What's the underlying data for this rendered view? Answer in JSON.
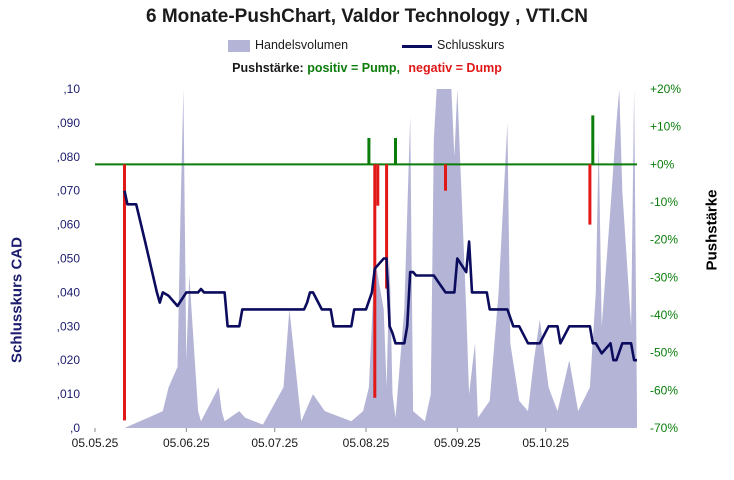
{
  "chart_data": {
    "type": "line",
    "title": "6 Monate-PushChart,  Valdor Technology , VTI.CN",
    "legend": {
      "position": "top",
      "volume_label": "Handelsvolumen",
      "close_label": "Schlusskurs"
    },
    "push_legend": {
      "label": "Pushstärke:",
      "positive": "positiv = Pump,",
      "negative": "negativ = Dump"
    },
    "ylabel_left": "Schlusskurs CAD",
    "ylabel_right": "Pushstärke",
    "x_start": "05.05.25",
    "x_end": "05.11.25",
    "x_ticks": [
      "05.05.25",
      "05.06.25",
      "05.07.25",
      "05.08.25",
      "05.09.25",
      "05.10.25"
    ],
    "y_left_ticks": [
      ",0",
      ",010",
      ",020",
      ",030",
      ",040",
      ",050",
      ",060",
      ",070",
      ",080",
      ",090",
      ",10"
    ],
    "y_left_range": [
      0,
      0.1
    ],
    "y_right_ticks": [
      "-70%",
      "-60%",
      "-50%",
      "-40%",
      "-30%",
      "-20%",
      "-10%",
      "+0%",
      "+10%",
      "+20%"
    ],
    "y_right_range": [
      -70,
      20
    ],
    "grid": false,
    "colors": {
      "volume": "#b4b4d6",
      "close": "#0c0c5e",
      "positive": "#0a7d0a",
      "negative": "#e01818",
      "zero_line": "#0a7d0a",
      "left_axis": "#1c1c6e",
      "right_axis": "#0a7d0a"
    },
    "series": [
      {
        "name": "Schlusskurs",
        "points": [
          [
            "2025-05-15",
            0.07
          ],
          [
            "2025-05-16",
            0.066
          ],
          [
            "2025-05-19",
            0.066
          ],
          [
            "2025-05-22",
            0.055
          ],
          [
            "2025-05-26",
            0.04
          ],
          [
            "2025-05-27",
            0.037
          ],
          [
            "2025-05-28",
            0.04
          ],
          [
            "2025-05-30",
            0.039
          ],
          [
            "2025-06-02",
            0.036
          ],
          [
            "2025-06-05",
            0.04
          ],
          [
            "2025-06-09",
            0.04
          ],
          [
            "2025-06-10",
            0.041
          ],
          [
            "2025-06-11",
            0.04
          ],
          [
            "2025-06-18",
            0.04
          ],
          [
            "2025-06-19",
            0.03
          ],
          [
            "2025-06-23",
            0.03
          ],
          [
            "2025-06-24",
            0.035
          ],
          [
            "2025-07-15",
            0.035
          ],
          [
            "2025-07-16",
            0.037
          ],
          [
            "2025-07-17",
            0.04
          ],
          [
            "2025-07-18",
            0.04
          ],
          [
            "2025-07-21",
            0.035
          ],
          [
            "2025-07-24",
            0.035
          ],
          [
            "2025-07-25",
            0.03
          ],
          [
            "2025-07-31",
            0.03
          ],
          [
            "2025-08-01",
            0.035
          ],
          [
            "2025-08-05",
            0.035
          ],
          [
            "2025-08-07",
            0.04
          ],
          [
            "2025-08-08",
            0.047
          ],
          [
            "2025-08-11",
            0.05
          ],
          [
            "2025-08-12",
            0.05
          ],
          [
            "2025-08-13",
            0.03
          ],
          [
            "2025-08-14",
            0.028
          ],
          [
            "2025-08-15",
            0.025
          ],
          [
            "2025-08-18",
            0.025
          ],
          [
            "2025-08-19",
            0.03
          ],
          [
            "2025-08-20",
            0.046
          ],
          [
            "2025-08-21",
            0.046
          ],
          [
            "2025-08-22",
            0.045
          ],
          [
            "2025-08-25",
            0.045
          ],
          [
            "2025-08-28",
            0.045
          ],
          [
            "2025-09-01",
            0.04
          ],
          [
            "2025-09-04",
            0.04
          ],
          [
            "2025-09-05",
            0.05
          ],
          [
            "2025-09-08",
            0.046
          ],
          [
            "2025-09-09",
            0.055
          ],
          [
            "2025-09-10",
            0.04
          ],
          [
            "2025-09-15",
            0.04
          ],
          [
            "2025-09-16",
            0.035
          ],
          [
            "2025-09-22",
            0.035
          ],
          [
            "2025-09-24",
            0.03
          ],
          [
            "2025-09-26",
            0.03
          ],
          [
            "2025-09-29",
            0.025
          ],
          [
            "2025-10-03",
            0.025
          ],
          [
            "2025-10-06",
            0.03
          ],
          [
            "2025-10-09",
            0.03
          ],
          [
            "2025-10-10",
            0.025
          ],
          [
            "2025-10-13",
            0.03
          ],
          [
            "2025-10-20",
            0.03
          ],
          [
            "2025-10-21",
            0.025
          ],
          [
            "2025-10-22",
            0.025
          ],
          [
            "2025-10-24",
            0.022
          ],
          [
            "2025-10-27",
            0.025
          ],
          [
            "2025-10-28",
            0.02
          ],
          [
            "2025-10-29",
            0.02
          ],
          [
            "2025-10-31",
            0.025
          ],
          [
            "2025-11-03",
            0.025
          ],
          [
            "2025-11-04",
            0.02
          ],
          [
            "2025-11-05",
            0.02
          ]
        ]
      },
      {
        "name": "Handelsvolumen",
        "relative": true,
        "points": [
          [
            "2025-05-15",
            0
          ],
          [
            "2025-05-23",
            0.03
          ],
          [
            "2025-05-28",
            0.05
          ],
          [
            "2025-05-30",
            0.12
          ],
          [
            "2025-06-02",
            0.18
          ],
          [
            "2025-06-03",
            0.62
          ],
          [
            "2025-06-04",
            1.0
          ],
          [
            "2025-06-05",
            0.2
          ],
          [
            "2025-06-06",
            0.45
          ],
          [
            "2025-06-09",
            0.05
          ],
          [
            "2025-06-10",
            0.02
          ],
          [
            "2025-06-16",
            0.12
          ],
          [
            "2025-06-17",
            0.05
          ],
          [
            "2025-06-18",
            0.02
          ],
          [
            "2025-06-23",
            0.05
          ],
          [
            "2025-06-25",
            0.03
          ],
          [
            "2025-07-01",
            0.01
          ],
          [
            "2025-07-08",
            0.12
          ],
          [
            "2025-07-10",
            0.35
          ],
          [
            "2025-07-14",
            0.02
          ],
          [
            "2025-07-18",
            0.1
          ],
          [
            "2025-07-22",
            0.05
          ],
          [
            "2025-07-31",
            0.02
          ],
          [
            "2025-08-04",
            0.05
          ],
          [
            "2025-08-06",
            0.12
          ],
          [
            "2025-08-08",
            0.5
          ],
          [
            "2025-08-11",
            0.35
          ],
          [
            "2025-08-12",
            0.12
          ],
          [
            "2025-08-13",
            0.5
          ],
          [
            "2025-08-14",
            0.1
          ],
          [
            "2025-08-15",
            0.03
          ],
          [
            "2025-08-18",
            0.35
          ],
          [
            "2025-08-20",
            0.92
          ],
          [
            "2025-08-21",
            0.05
          ],
          [
            "2025-08-25",
            0.02
          ],
          [
            "2025-08-27",
            0.1
          ],
          [
            "2025-08-28",
            0.85
          ],
          [
            "2025-08-29",
            1.0
          ],
          [
            "2025-09-03",
            1.0
          ],
          [
            "2025-09-04",
            0.8
          ],
          [
            "2025-09-05",
            1.0
          ],
          [
            "2025-09-08",
            0.35
          ],
          [
            "2025-09-09",
            0.1
          ],
          [
            "2025-09-11",
            0.25
          ],
          [
            "2025-09-12",
            0.03
          ],
          [
            "2025-09-16",
            0.08
          ],
          [
            "2025-09-19",
            0.4
          ],
          [
            "2025-09-22",
            0.9
          ],
          [
            "2025-09-23",
            0.25
          ],
          [
            "2025-09-26",
            0.08
          ],
          [
            "2025-09-29",
            0.05
          ],
          [
            "2025-10-01",
            0.2
          ],
          [
            "2025-10-03",
            0.32
          ],
          [
            "2025-10-06",
            0.12
          ],
          [
            "2025-10-09",
            0.05
          ],
          [
            "2025-10-13",
            0.2
          ],
          [
            "2025-10-16",
            0.05
          ],
          [
            "2025-10-20",
            0.12
          ],
          [
            "2025-10-22",
            0.4
          ],
          [
            "2025-10-23",
            0.85
          ],
          [
            "2025-10-24",
            0.3
          ],
          [
            "2025-10-27",
            0.65
          ],
          [
            "2025-10-29",
            0.9
          ],
          [
            "2025-10-30",
            1.0
          ],
          [
            "2025-10-31",
            0.7
          ],
          [
            "2025-11-03",
            0.3
          ],
          [
            "2025-11-04",
            1.0
          ],
          [
            "2025-11-05",
            0.05
          ]
        ]
      },
      {
        "name": "Pushstärke",
        "unit": "%",
        "bars": [
          [
            "2025-05-15",
            -68
          ],
          [
            "2025-08-06",
            7
          ],
          [
            "2025-08-08",
            -62
          ],
          [
            "2025-08-09",
            -11
          ],
          [
            "2025-08-12",
            -33
          ],
          [
            "2025-08-15",
            7
          ],
          [
            "2025-09-01",
            -7
          ],
          [
            "2025-10-20",
            -16
          ],
          [
            "2025-10-21",
            13
          ]
        ]
      }
    ]
  }
}
